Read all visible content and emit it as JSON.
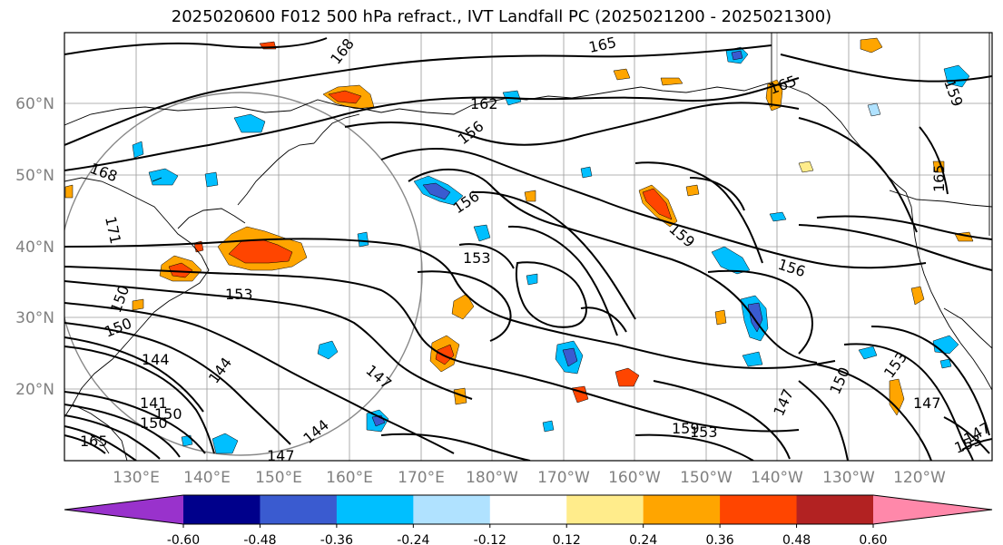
{
  "title": "2025020600 F012 500 hPa refract., IVT Landfall PC (2025021200 - 2025021300)",
  "latitude_labels": [
    "60°N",
    "50°N",
    "40°N",
    "30°N",
    "20°N"
  ],
  "longitude_labels": [
    "130°E",
    "140°E",
    "150°E",
    "160°E",
    "170°E",
    "180°W",
    "170°W",
    "160°W",
    "150°W",
    "140°W",
    "130°W",
    "120°W"
  ],
  "colorbar": {
    "colors": [
      "#9932cc",
      "#00008b",
      "#3a5bd0",
      "#00bfff",
      "#b0e2ff",
      "#ffffff",
      "#ffec8b",
      "#ffa500",
      "#ff4500",
      "#b22222",
      "#ff88aa"
    ],
    "tick_labels": [
      "-0.60",
      "-0.48",
      "-0.36",
      "-0.24",
      "-0.12",
      "0.12",
      "0.24",
      "0.36",
      "0.48",
      "0.60"
    ]
  },
  "contour_labels": [
    "168",
    "165",
    "162",
    "156",
    "165",
    "168",
    "171",
    "156",
    "153",
    "153",
    "159",
    "156",
    "165",
    "159",
    "150",
    "144",
    "144",
    "147",
    "147",
    "147",
    "144",
    "150",
    "153",
    "147",
    "159",
    "153",
    "150",
    "150",
    "141",
    "165",
    "153",
    "147",
    "150"
  ],
  "colors": {
    "contour": "#000000",
    "coastline": "#000000",
    "grid": "#808080"
  }
}
